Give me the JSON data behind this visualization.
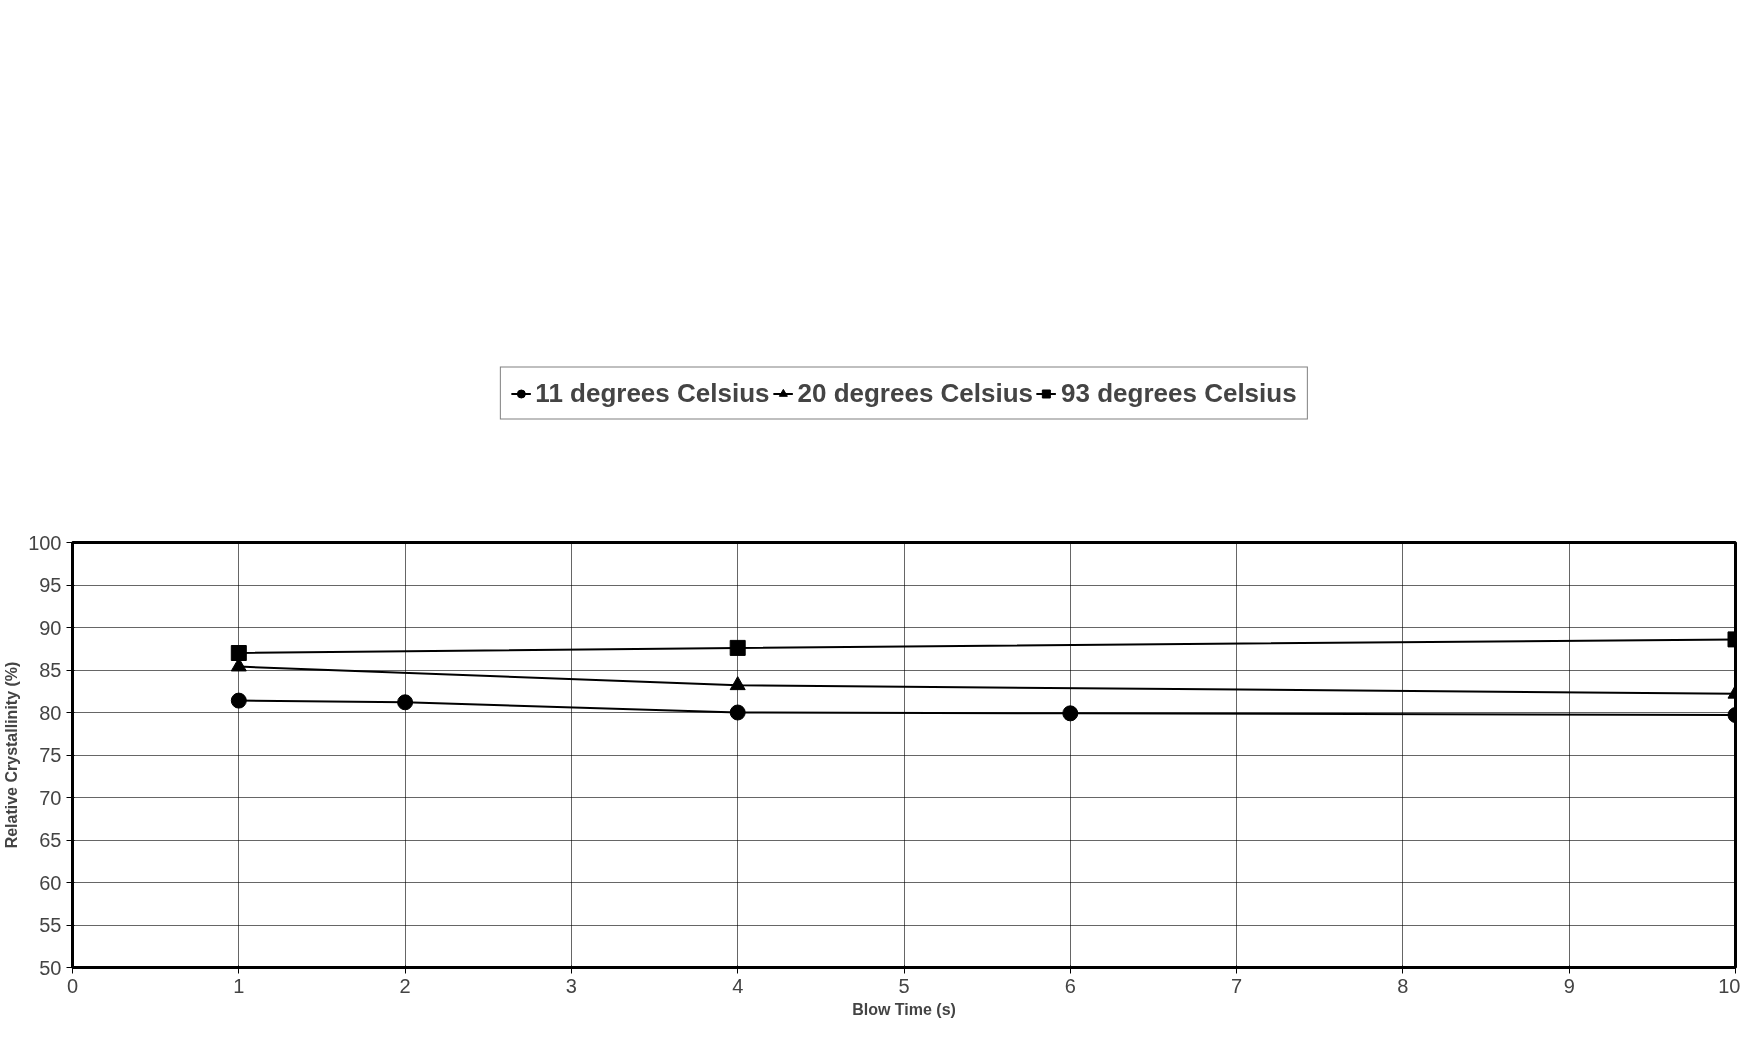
{
  "chart_data": {
    "type": "line",
    "xlabel": "Blow Time (s)",
    "ylabel": "Relative Crystallinity (%)",
    "xlim": [
      0,
      10
    ],
    "xticks": [
      0,
      1,
      2,
      3,
      4,
      5,
      6,
      7,
      8,
      9,
      10
    ],
    "ylim": [
      50,
      100
    ],
    "yticks": [
      50,
      55,
      60,
      65,
      70,
      75,
      80,
      85,
      90,
      95,
      100
    ],
    "grid": true,
    "legend": "top",
    "line_style": "solid",
    "series": [
      {
        "name": "11 degrees Celsius",
        "color": "#000000",
        "marker": "circle",
        "x": [
          1,
          2,
          4,
          6,
          10
        ],
        "values": [
          81.4,
          81.2,
          80.0,
          79.9,
          79.7
        ]
      },
      {
        "name": "20 degrees Celsius",
        "color": "#000000",
        "marker": "triangle",
        "x": [
          1,
          4,
          10
        ],
        "values": [
          85.4,
          83.2,
          82.2
        ]
      },
      {
        "name": "93 degrees Celsius",
        "color": "#000000",
        "marker": "square",
        "x": [
          1,
          4,
          10
        ],
        "values": [
          87.0,
          87.6,
          88.6
        ]
      }
    ]
  }
}
